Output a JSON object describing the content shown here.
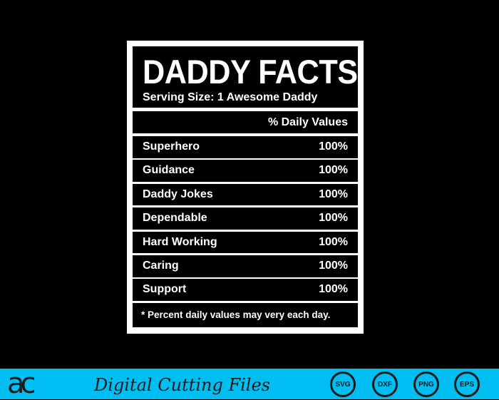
{
  "label": {
    "title": "DADDY FACTS",
    "serving": "Serving Size: 1 Awesome Daddy",
    "daily_header": "% Daily Values",
    "rows": [
      {
        "name": "Superhero",
        "value": "100%"
      },
      {
        "name": "Guidance",
        "value": "100%"
      },
      {
        "name": "Daddy Jokes",
        "value": "100%"
      },
      {
        "name": "Dependable",
        "value": "100%"
      },
      {
        "name": "Hard Working",
        "value": "100%"
      },
      {
        "name": "Caring",
        "value": "100%"
      },
      {
        "name": "Support",
        "value": "100%"
      }
    ],
    "footnote": "* Percent daily values may very each day."
  },
  "banner": {
    "logo": "ac",
    "brand": "Digital Cutting Files",
    "formats": [
      "SVG",
      "DXF",
      "PNG",
      "EPS"
    ],
    "color": "#00bdf2"
  }
}
